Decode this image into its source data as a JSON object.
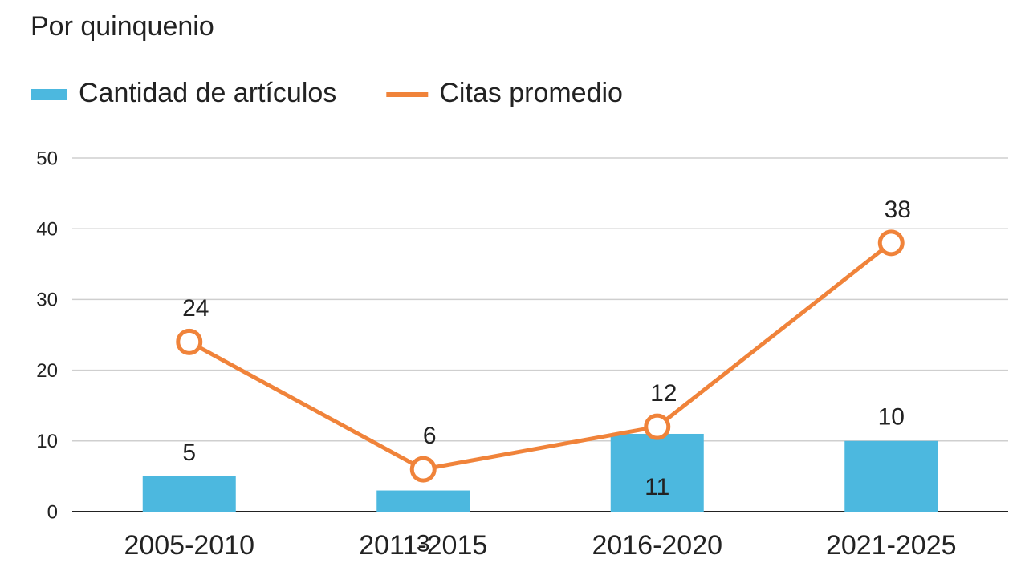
{
  "chart_data": {
    "type": "bar_line",
    "title": "Por quinquenio",
    "categories": [
      "2005-2010",
      "2011-2015",
      "2016-2020",
      "2021-2025"
    ],
    "series": [
      {
        "name": "Cantidad de artículos",
        "type": "bar",
        "color": "#4cb8df",
        "values": [
          5,
          3,
          11,
          10
        ]
      },
      {
        "name": "Citas promedio",
        "type": "line",
        "color": "#f0833a",
        "values": [
          24,
          6,
          12,
          38
        ]
      }
    ],
    "ylim": [
      0,
      50
    ],
    "yticks": [
      0,
      10,
      20,
      30,
      40,
      50
    ],
    "grid": true,
    "legend": "top-left"
  }
}
